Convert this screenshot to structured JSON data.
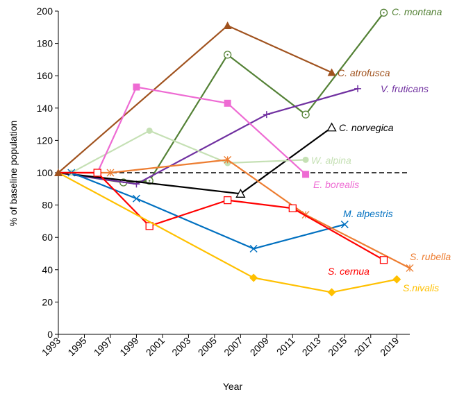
{
  "chart_data": {
    "type": "line",
    "xlabel": "Year",
    "ylabel": "% of baseline population",
    "xlim": [
      1993,
      2020
    ],
    "ylim": [
      0,
      200
    ],
    "x_ticks": [
      1993,
      1995,
      1997,
      1999,
      2001,
      2003,
      2005,
      2007,
      2009,
      2011,
      2013,
      2015,
      2017,
      2019
    ],
    "y_ticks": [
      0,
      20,
      40,
      60,
      80,
      100,
      120,
      140,
      160,
      180,
      200
    ],
    "baseline": 100,
    "grid": false,
    "legend": "none (series labelled directly at line ends)",
    "series": [
      {
        "name": "C. montana",
        "color": "#538135",
        "marker": "circle-dot-open",
        "x": [
          1993,
          1998,
          2000,
          2006,
          2012,
          2018
        ],
        "y": [
          100,
          94,
          95,
          173,
          136,
          199
        ]
      },
      {
        "name": "C. atrofusca",
        "color": "#A0521E",
        "marker": "triangle-filled",
        "x": [
          1993,
          2006,
          2014
        ],
        "y": [
          100,
          191,
          162
        ]
      },
      {
        "name": "V. fruticans",
        "color": "#7030A0",
        "marker": "plus",
        "x": [
          1993,
          1999,
          2009,
          2016
        ],
        "y": [
          100,
          93,
          136,
          152
        ]
      },
      {
        "name": "C. norvegica",
        "color": "#000000",
        "marker": "triangle-open",
        "x": [
          1993,
          2007,
          2014
        ],
        "y": [
          100,
          87,
          128
        ]
      },
      {
        "name": "W. alpina",
        "color": "#C5E0B4",
        "marker": "circle-filled",
        "x": [
          1993,
          1994,
          2000,
          2006,
          2012
        ],
        "y": [
          100,
          100,
          126,
          106,
          108
        ]
      },
      {
        "name": "E. borealis",
        "color": "#EE6BD3",
        "marker": "square-filled",
        "x": [
          1993,
          1996,
          1999,
          2006,
          2012
        ],
        "y": [
          100,
          100,
          153,
          143,
          99
        ]
      },
      {
        "name": "M. alpestris",
        "color": "#0070C0",
        "marker": "x",
        "x": [
          1993,
          1994,
          1999,
          2008,
          2015
        ],
        "y": [
          100,
          100,
          84,
          53,
          68
        ]
      },
      {
        "name": "S. rubella",
        "color": "#ED7D31",
        "marker": "asterisk",
        "x": [
          1993,
          1997,
          2006,
          2012,
          2020
        ],
        "y": [
          100,
          100,
          108,
          74,
          41
        ]
      },
      {
        "name": "S. cernua",
        "color": "#FF0000",
        "marker": "square-open",
        "x": [
          1993,
          1996,
          2000,
          2006,
          2011,
          2018
        ],
        "y": [
          100,
          100,
          67,
          83,
          78,
          46
        ]
      },
      {
        "name": "S.nivalis",
        "color": "#FFC000",
        "marker": "diamond-filled",
        "x": [
          1993,
          2008,
          2014,
          2019
        ],
        "y": [
          100,
          35,
          26,
          34
        ]
      }
    ]
  }
}
